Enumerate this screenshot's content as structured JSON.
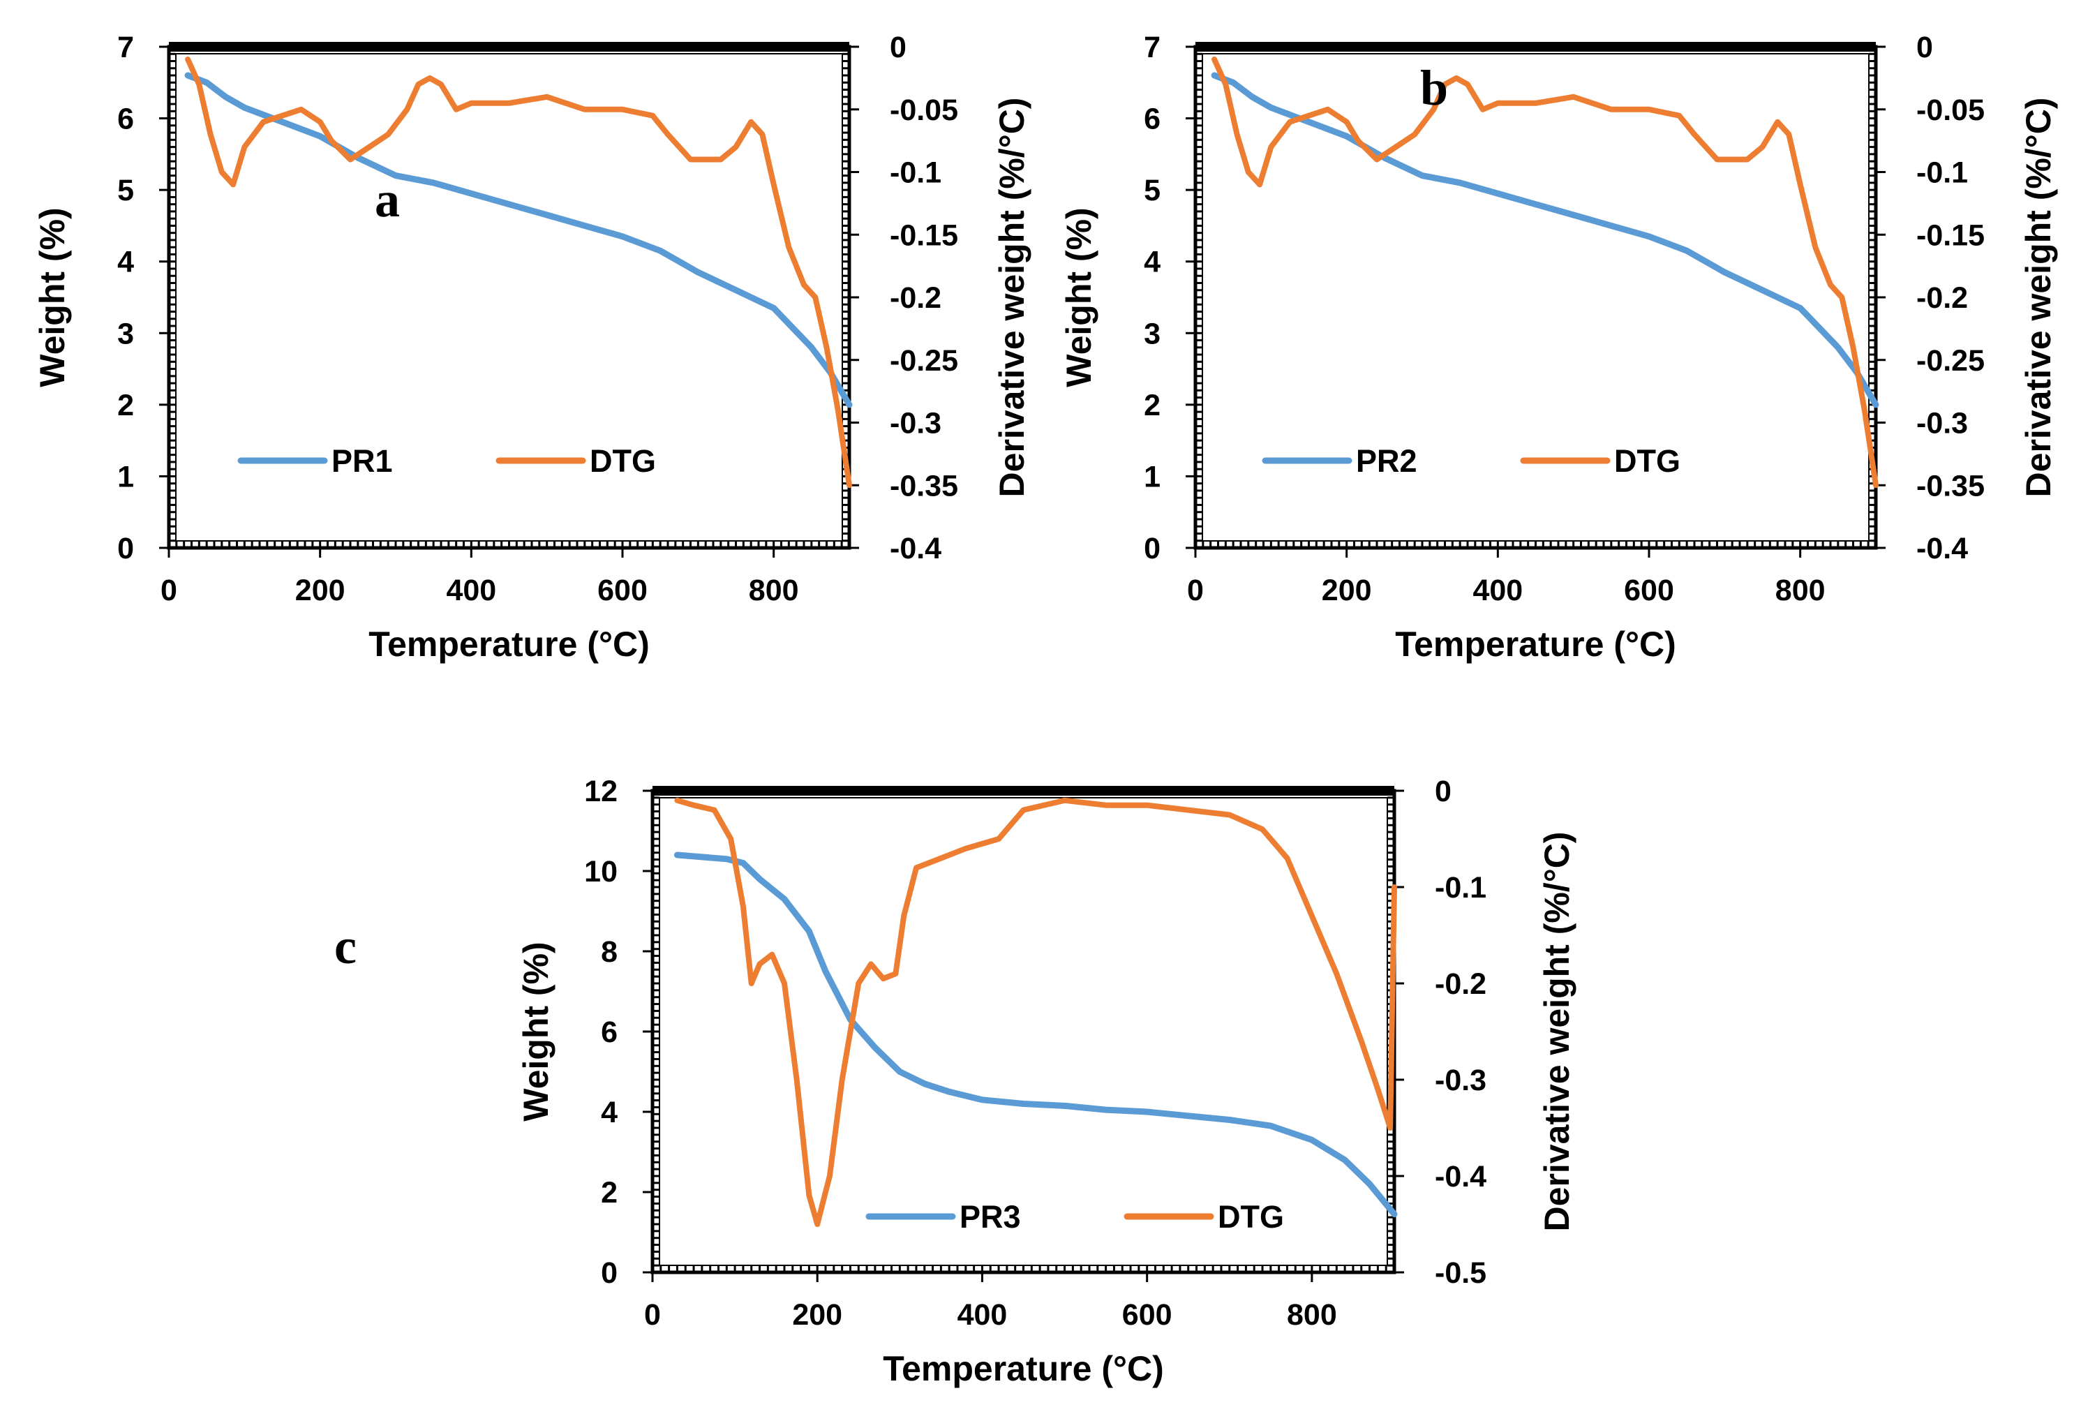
{
  "colors": {
    "weight": "#5b9bd5",
    "dtg": "#ed7d31",
    "axis": "#000000"
  },
  "chart_data": [
    {
      "id": "a",
      "type": "line",
      "panel_label": "a",
      "xlabel": "Temperature (°C)",
      "ylabel": "Weight (%)",
      "y2label": "Derivative weight (%/°C)",
      "xlim": [
        0,
        900
      ],
      "ylim": [
        0,
        7
      ],
      "y2lim": [
        -0.4,
        0
      ],
      "x_ticks": [
        0,
        200,
        400,
        600,
        800
      ],
      "x_tick_labels": [
        "0",
        "200",
        "400",
        "600",
        "800"
      ],
      "y_ticks": [
        0,
        1,
        2,
        3,
        4,
        5,
        6,
        7
      ],
      "y_tick_labels": [
        "0",
        "1",
        "2",
        "3",
        "4",
        "5",
        "6",
        "7"
      ],
      "y2_ticks": [
        0,
        -0.05,
        -0.1,
        -0.15,
        -0.2,
        -0.25,
        -0.3,
        -0.35,
        -0.4
      ],
      "y2_tick_labels": [
        "0",
        "-0.05",
        "-0.1",
        "-0.15",
        "-0.2",
        "-0.25",
        "-0.3",
        "-0.35",
        "-0.4"
      ],
      "legend": [
        "PR1",
        "DTG"
      ],
      "legend_position": "lower-center",
      "series": [
        {
          "name": "PR1",
          "axis": "left",
          "x": [
            25,
            50,
            75,
            100,
            150,
            200,
            250,
            300,
            350,
            400,
            450,
            500,
            550,
            600,
            650,
            700,
            750,
            800,
            850,
            875,
            900
          ],
          "values": [
            6.6,
            6.5,
            6.3,
            6.15,
            5.95,
            5.75,
            5.45,
            5.2,
            5.1,
            4.95,
            4.8,
            4.65,
            4.5,
            4.35,
            4.15,
            3.85,
            3.6,
            3.35,
            2.8,
            2.45,
            2.0
          ]
        },
        {
          "name": "DTG",
          "axis": "right",
          "x": [
            25,
            40,
            55,
            70,
            85,
            100,
            125,
            150,
            175,
            200,
            215,
            240,
            265,
            290,
            315,
            330,
            345,
            360,
            380,
            400,
            450,
            500,
            550,
            600,
            640,
            660,
            690,
            730,
            750,
            770,
            785,
            800,
            820,
            840,
            855,
            870,
            885,
            900
          ],
          "values": [
            -0.01,
            -0.03,
            -0.07,
            -0.1,
            -0.11,
            -0.08,
            -0.06,
            -0.055,
            -0.05,
            -0.06,
            -0.075,
            -0.09,
            -0.08,
            -0.07,
            -0.05,
            -0.03,
            -0.025,
            -0.03,
            -0.05,
            -0.045,
            -0.045,
            -0.04,
            -0.05,
            -0.05,
            -0.055,
            -0.07,
            -0.09,
            -0.09,
            -0.08,
            -0.06,
            -0.07,
            -0.11,
            -0.16,
            -0.19,
            -0.2,
            -0.24,
            -0.29,
            -0.35
          ]
        }
      ]
    },
    {
      "id": "b",
      "type": "line",
      "panel_label": "b",
      "xlabel": "Temperature (°C)",
      "ylabel": "Weight (%)",
      "y2label": "Derivative weight (%/°C)",
      "xlim": [
        0,
        900
      ],
      "ylim": [
        0,
        7
      ],
      "y2lim": [
        -0.4,
        0
      ],
      "x_ticks": [
        0,
        200,
        400,
        600,
        800
      ],
      "x_tick_labels": [
        "0",
        "200",
        "400",
        "600",
        "800"
      ],
      "y_ticks": [
        0,
        1,
        2,
        3,
        4,
        5,
        6,
        7
      ],
      "y_tick_labels": [
        "0",
        "1",
        "2",
        "3",
        "4",
        "5",
        "6",
        "7"
      ],
      "y2_ticks": [
        0,
        -0.05,
        -0.1,
        -0.15,
        -0.2,
        -0.25,
        -0.3,
        -0.35,
        -0.4
      ],
      "y2_tick_labels": [
        "0",
        "-0.05",
        "-0.1",
        "-0.15",
        "-0.2",
        "-0.25",
        "-0.3",
        "-0.35",
        "-0.4"
      ],
      "legend": [
        "PR2",
        "DTG"
      ],
      "legend_position": "lower-center",
      "series": [
        {
          "name": "PR2",
          "axis": "left",
          "x": [
            25,
            50,
            75,
            100,
            150,
            200,
            250,
            300,
            350,
            400,
            450,
            500,
            550,
            600,
            650,
            700,
            750,
            800,
            850,
            875,
            900
          ],
          "values": [
            6.6,
            6.5,
            6.3,
            6.15,
            5.95,
            5.75,
            5.45,
            5.2,
            5.1,
            4.95,
            4.8,
            4.65,
            4.5,
            4.35,
            4.15,
            3.85,
            3.6,
            3.35,
            2.8,
            2.45,
            2.0
          ]
        },
        {
          "name": "DTG",
          "axis": "right",
          "x": [
            25,
            40,
            55,
            70,
            85,
            100,
            125,
            150,
            175,
            200,
            215,
            240,
            265,
            290,
            315,
            330,
            345,
            360,
            380,
            400,
            450,
            500,
            550,
            600,
            640,
            660,
            690,
            730,
            750,
            770,
            785,
            800,
            820,
            840,
            855,
            870,
            885,
            900
          ],
          "values": [
            -0.01,
            -0.03,
            -0.07,
            -0.1,
            -0.11,
            -0.08,
            -0.06,
            -0.055,
            -0.05,
            -0.06,
            -0.075,
            -0.09,
            -0.08,
            -0.07,
            -0.05,
            -0.03,
            -0.025,
            -0.03,
            -0.05,
            -0.045,
            -0.045,
            -0.04,
            -0.05,
            -0.05,
            -0.055,
            -0.07,
            -0.09,
            -0.09,
            -0.08,
            -0.06,
            -0.07,
            -0.11,
            -0.16,
            -0.19,
            -0.2,
            -0.24,
            -0.29,
            -0.35
          ]
        }
      ]
    },
    {
      "id": "c",
      "type": "line",
      "panel_label": "c",
      "xlabel": "Temperature (°C)",
      "ylabel": "Weight (%)",
      "y2label": "Derivative weight (%/°C)",
      "xlim": [
        0,
        900
      ],
      "ylim": [
        0,
        12
      ],
      "y2lim": [
        -0.5,
        0
      ],
      "x_ticks": [
        0,
        200,
        400,
        600,
        800
      ],
      "x_tick_labels": [
        "0",
        "200",
        "400",
        "600",
        "800"
      ],
      "y_ticks": [
        0,
        2,
        4,
        6,
        8,
        10,
        12
      ],
      "y_tick_labels": [
        "0",
        "2",
        "4",
        "6",
        "8",
        "10",
        "12"
      ],
      "y2_ticks": [
        0,
        -0.1,
        -0.2,
        -0.3,
        -0.4,
        -0.5
      ],
      "y2_tick_labels": [
        "0",
        "-0.1",
        "-0.2",
        "-0.3",
        "-0.4",
        "-0.5"
      ],
      "legend": [
        "PR3",
        "DTG"
      ],
      "legend_position": "lower-center",
      "series": [
        {
          "name": "PR3",
          "axis": "left",
          "x": [
            30,
            60,
            90,
            110,
            130,
            160,
            190,
            210,
            240,
            270,
            300,
            330,
            360,
            400,
            450,
            500,
            550,
            600,
            650,
            700,
            750,
            800,
            840,
            870,
            900
          ],
          "values": [
            10.4,
            10.35,
            10.3,
            10.2,
            9.8,
            9.3,
            8.5,
            7.5,
            6.3,
            5.6,
            5.0,
            4.7,
            4.5,
            4.3,
            4.2,
            4.15,
            4.05,
            4.0,
            3.9,
            3.8,
            3.65,
            3.3,
            2.8,
            2.2,
            1.45
          ]
        },
        {
          "name": "DTG",
          "axis": "right",
          "x": [
            30,
            50,
            75,
            95,
            110,
            120,
            130,
            145,
            160,
            175,
            190,
            200,
            215,
            230,
            250,
            265,
            280,
            295,
            305,
            320,
            350,
            380,
            420,
            450,
            500,
            550,
            600,
            650,
            700,
            740,
            770,
            800,
            830,
            860,
            880,
            895,
            900
          ],
          "values": [
            -0.01,
            -0.015,
            -0.02,
            -0.05,
            -0.12,
            -0.2,
            -0.18,
            -0.17,
            -0.2,
            -0.3,
            -0.42,
            -0.45,
            -0.4,
            -0.3,
            -0.2,
            -0.18,
            -0.195,
            -0.19,
            -0.13,
            -0.08,
            -0.07,
            -0.06,
            -0.05,
            -0.02,
            -0.01,
            -0.015,
            -0.015,
            -0.02,
            -0.025,
            -0.04,
            -0.07,
            -0.13,
            -0.19,
            -0.26,
            -0.31,
            -0.35,
            -0.1
          ]
        }
      ]
    }
  ]
}
